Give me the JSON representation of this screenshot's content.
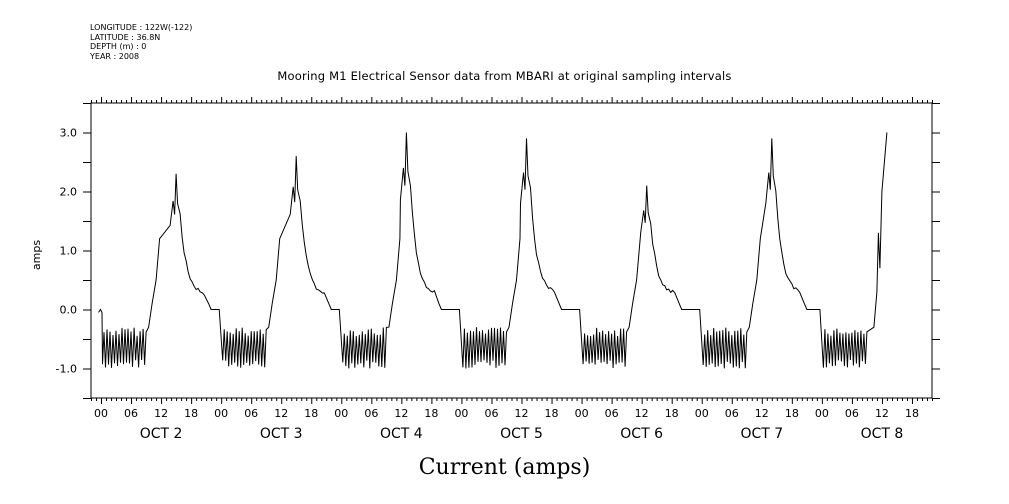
{
  "header": {
    "longitude": "LONGITUDE : 122W(-122)",
    "latitude": "LATITUDE : 36.8N",
    "depth": "DEPTH (m) : 0",
    "year": "YEAR : 2008"
  },
  "chart_data": {
    "type": "line",
    "title": "Mooring M1 Electrical Sensor data from MBARI at original sampling intervals",
    "subtitle": "Current (amps)",
    "xlabel": "",
    "ylabel": "amps",
    "ylim": [
      -1.5,
      3.5
    ],
    "xlim_hours": [
      -2,
      166
    ],
    "y_ticks": [
      -1.0,
      0.0,
      1.0,
      2.0,
      3.0
    ],
    "y_tick_labels": [
      "-1.0",
      "0.0",
      "1.0",
      "2.0",
      "3.0"
    ],
    "hour_tick_labels": [
      "00",
      "06",
      "12",
      "18"
    ],
    "day_labels": [
      "OCT  2",
      "OCT  3",
      "OCT  4",
      "OCT  5",
      "OCT  6",
      "OCT  7",
      "OCT  8"
    ],
    "grid": false,
    "line_color": "#000000",
    "daily_peaks": [
      {
        "day": "OCT 2",
        "hour": 15,
        "value": 2.3
      },
      {
        "day": "OCT 3",
        "hour": 15,
        "value": 2.6
      },
      {
        "day": "OCT 4",
        "hour": 13,
        "value": 3.0
      },
      {
        "day": "OCT 5",
        "hour": 13,
        "value": 2.9
      },
      {
        "day": "OCT 6",
        "hour": 13,
        "value": 2.1
      },
      {
        "day": "OCT 7",
        "hour": 14,
        "value": 2.9
      },
      {
        "day": "OCT 8",
        "hour": 13,
        "value": 3.0
      }
    ],
    "night_range": [
      -1.0,
      -0.3
    ],
    "evening_level": 0.0,
    "final_value": 3.0
  }
}
